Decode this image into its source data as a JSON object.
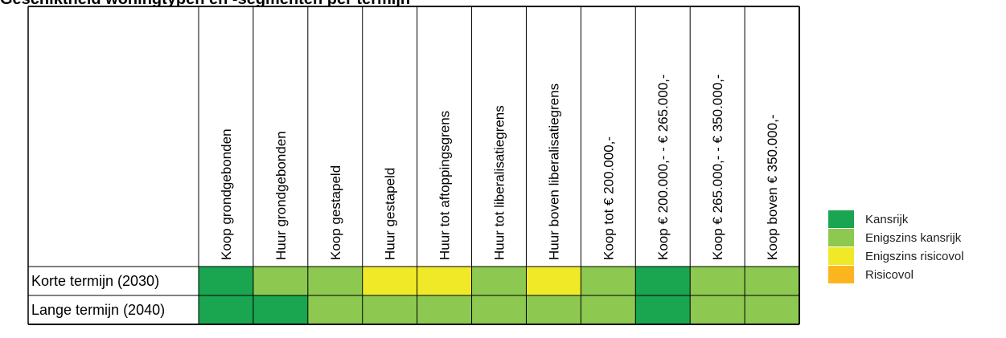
{
  "title": "Geschiktheid woningtypen en -segmenten per termijn",
  "chart_data": {
    "type": "heatmap",
    "columns": [
      "Koop grondgebonden",
      "Huur grondgebonden",
      "Koop gestapeld",
      "Huur gestapeld",
      "Huur tot aftoppingsgrens",
      "Huur tot liberalisatiegrens",
      "Huur boven liberalisatiegrens",
      "Koop tot € 200.000,-",
      "Koop € 200.000,- - € 265.000,-",
      "Koop € 265.000,- - € 350.000,-",
      "Koop boven € 350.000,-"
    ],
    "rows": [
      {
        "label": "Korte termijn (2030)",
        "values": [
          "Kansrijk",
          "Enigszins kansrijk",
          "Enigszins kansrijk",
          "Enigszins risicovol",
          "Enigszins risicovol",
          "Enigszins kansrijk",
          "Enigszins risicovol",
          "Enigszins kansrijk",
          "Kansrijk",
          "Enigszins kansrijk",
          "Enigszins kansrijk"
        ]
      },
      {
        "label": "Lange termijn (2040)",
        "values": [
          "Kansrijk",
          "Kansrijk",
          "Enigszins kansrijk",
          "Enigszins kansrijk",
          "Enigszins kansrijk",
          "Enigszins kansrijk",
          "Enigszins kansrijk",
          "Enigszins kansrijk",
          "Kansrijk",
          "Enigszins kansrijk",
          "Enigszins kansrijk"
        ]
      }
    ],
    "legend": [
      {
        "label": "Kansrijk",
        "color": "#1aa550"
      },
      {
        "label": "Enigszins kansrijk",
        "color": "#8dc851"
      },
      {
        "label": "Enigszins risicovol",
        "color": "#f0e928"
      },
      {
        "label": "Risicovol",
        "color": "#fbb51f"
      }
    ],
    "legend_position": "right"
  }
}
